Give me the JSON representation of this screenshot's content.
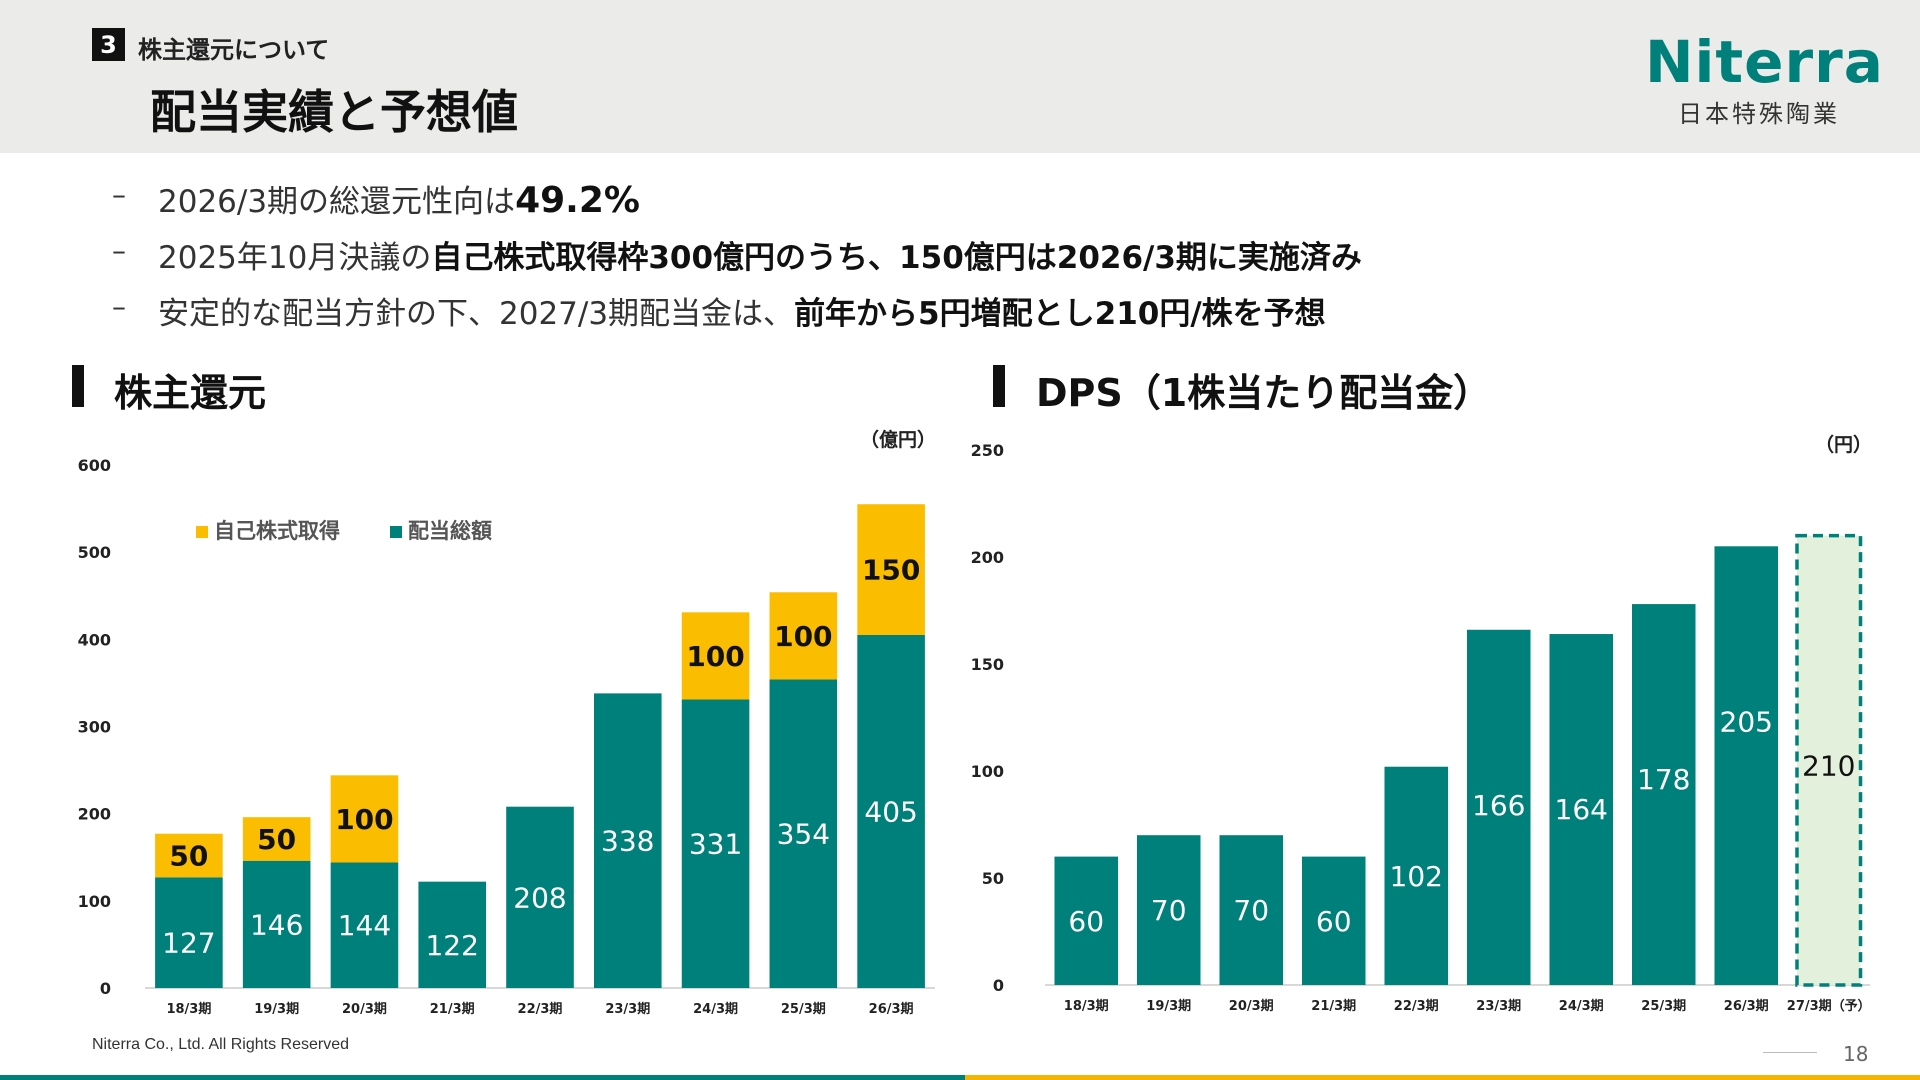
{
  "header": {
    "section_number": "3",
    "section_label": "株主還元について",
    "title": "配当実績と予想値",
    "logo_text": "Niterra",
    "logo_sub": "日本特殊陶業"
  },
  "bullets": [
    {
      "dash": "–",
      "plain": "2026/3期の総還元性向は",
      "bold": "49.2%",
      "plain2": ""
    },
    {
      "dash": "–",
      "plain": "2025年10月決議の",
      "bold": "自己株式取得枠300億円のうち、150億円は2026/3期に実施済み",
      "plain2": ""
    },
    {
      "dash": "–",
      "plain": "安定的な配当方針の下、2027/3期配当金は、",
      "bold": "前年から5円増配とし210円/株を予想",
      "plain2": ""
    }
  ],
  "left_panel": {
    "title": "株主還元",
    "unit": "（億円）"
  },
  "right_panel": {
    "title": "DPS（1株当たり配当金）",
    "unit": "（円）"
  },
  "footer": {
    "copyright": "Niterra Co., Ltd. All Rights Reserved",
    "page": "18"
  },
  "colors": {
    "teal": "#00807a",
    "gold": "#fbbd00",
    "forecast_fill": "#e3f1dc"
  },
  "chart_data": [
    {
      "type": "bar",
      "stacked": true,
      "categories": [
        "18/3期",
        "19/3期",
        "20/3期",
        "21/3期",
        "22/3期",
        "23/3期",
        "24/3期",
        "25/3期",
        "26/3期"
      ],
      "series": [
        {
          "name": "配当総額",
          "color": "#00807a",
          "values": [
            127,
            146,
            144,
            122,
            208,
            338,
            331,
            354,
            405
          ]
        },
        {
          "name": "自己株式取得",
          "color": "#fbbd00",
          "values": [
            50,
            50,
            100,
            null,
            null,
            null,
            100,
            100,
            150
          ]
        }
      ],
      "ylim": [
        0,
        600
      ],
      "yticks": [
        0,
        100,
        200,
        300,
        400,
        500,
        600
      ],
      "legend": "top-left",
      "unit": "（億円）"
    },
    {
      "type": "bar",
      "categories": [
        "18/3期",
        "19/3期",
        "20/3期",
        "21/3期",
        "22/3期",
        "23/3期",
        "24/3期",
        "25/3期",
        "26/3期",
        "27/3期（予）"
      ],
      "values": [
        60,
        70,
        70,
        60,
        102,
        166,
        164,
        178,
        205,
        210
      ],
      "forecast_index": 9,
      "ylim": [
        0,
        250
      ],
      "yticks": [
        0,
        50,
        100,
        150,
        200,
        250
      ],
      "unit": "（円）"
    }
  ]
}
